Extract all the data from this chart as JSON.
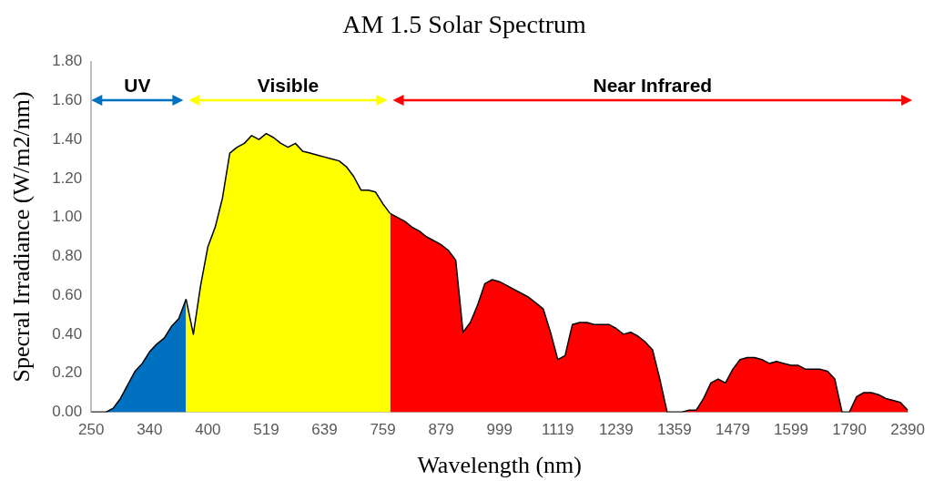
{
  "chart_data": {
    "type": "area",
    "title": "AM 1.5 Solar Spectrum",
    "xlabel": "Wavelength (nm)",
    "ylabel": "Specral Irradiance (W/m2/nm)",
    "categories": [
      "250",
      null,
      null,
      null,
      null,
      null,
      null,
      null,
      "340",
      null,
      null,
      null,
      null,
      null,
      null,
      null,
      "400",
      null,
      null,
      null,
      null,
      null,
      null,
      null,
      "519",
      null,
      null,
      null,
      null,
      null,
      null,
      null,
      "639",
      null,
      null,
      null,
      null,
      null,
      null,
      null,
      "759",
      null,
      null,
      null,
      null,
      null,
      null,
      null,
      "879",
      null,
      null,
      null,
      null,
      null,
      null,
      null,
      "999",
      null,
      null,
      null,
      null,
      null,
      null,
      null,
      "1119",
      null,
      null,
      null,
      null,
      null,
      null,
      null,
      "1239",
      null,
      null,
      null,
      null,
      null,
      null,
      null,
      "1359",
      null,
      null,
      null,
      null,
      null,
      null,
      null,
      "1479",
      null,
      null,
      null,
      null,
      null,
      null,
      null,
      "1599",
      null,
      null,
      null,
      null,
      null,
      null,
      null,
      "1790",
      null,
      null,
      null,
      null,
      null,
      null,
      null,
      "2390"
    ],
    "series": [
      {
        "color": "#0070c0",
        "values": [
          0,
          0,
          0,
          0.02,
          0.07,
          0.14,
          0.21,
          0.25,
          0.31,
          0.35,
          0.38,
          0.44,
          0.48,
          0.58,
          null,
          null,
          null,
          null,
          null,
          null,
          null,
          null,
          null,
          null,
          null,
          null,
          null,
          null,
          null,
          null,
          null,
          null,
          null,
          null,
          null,
          null,
          null,
          null,
          null,
          null,
          null,
          null,
          null,
          null,
          null,
          null,
          null,
          null,
          null,
          null,
          null,
          null,
          null,
          null,
          null,
          null,
          null,
          null,
          null,
          null,
          null,
          null,
          null,
          null,
          null,
          null,
          null,
          null,
          null,
          null,
          null,
          null,
          null,
          null,
          null,
          null,
          null,
          null,
          null,
          null,
          null,
          null,
          null,
          null,
          null,
          null,
          null,
          null,
          null,
          null,
          null,
          null,
          null,
          null,
          null,
          null,
          null,
          null,
          null,
          null,
          null,
          null,
          null,
          null,
          null,
          null,
          null,
          null,
          null,
          null,
          null,
          null,
          null
        ]
      },
      {
        "color": "#ffff00",
        "values": [
          null,
          null,
          null,
          null,
          null,
          null,
          null,
          null,
          null,
          null,
          null,
          null,
          null,
          0.58,
          0.4,
          0.65,
          0.85,
          0.95,
          1.1,
          1.33,
          1.36,
          1.38,
          1.42,
          1.4,
          1.43,
          1.41,
          1.38,
          1.36,
          1.38,
          1.34,
          1.33,
          1.32,
          1.31,
          1.3,
          1.29,
          1.26,
          1.21,
          1.14,
          1.14,
          1.13,
          1.07,
          1.02,
          null,
          null,
          null,
          null,
          null,
          null,
          null,
          null,
          null,
          null,
          null,
          null,
          null,
          null,
          null,
          null,
          null,
          null,
          null,
          null,
          null,
          null,
          null,
          null,
          null,
          null,
          null,
          null,
          null,
          null,
          null,
          null,
          null,
          null,
          null,
          null,
          null,
          null,
          null,
          null,
          null,
          null,
          null,
          null,
          null,
          null,
          null,
          null,
          null,
          null,
          null,
          null,
          null,
          null,
          null,
          null,
          null,
          null,
          null,
          null,
          null,
          null,
          null,
          null,
          null,
          null,
          null,
          null,
          null,
          null,
          null
        ]
      },
      {
        "color": "#ff0000",
        "values": [
          null,
          null,
          null,
          null,
          null,
          null,
          null,
          null,
          null,
          null,
          null,
          null,
          null,
          null,
          null,
          null,
          null,
          null,
          null,
          null,
          null,
          null,
          null,
          null,
          null,
          null,
          null,
          null,
          null,
          null,
          null,
          null,
          null,
          null,
          null,
          null,
          null,
          null,
          null,
          null,
          null,
          1.02,
          1.0,
          0.98,
          0.95,
          0.93,
          0.9,
          0.88,
          0.86,
          0.83,
          0.78,
          0.41,
          0.46,
          0.55,
          0.66,
          0.68,
          0.67,
          0.65,
          0.63,
          0.61,
          0.59,
          0.56,
          0.53,
          0.41,
          0.27,
          0.29,
          0.45,
          0.46,
          0.46,
          0.45,
          0.45,
          0.45,
          0.43,
          0.4,
          0.41,
          0.39,
          0.36,
          0.32,
          0.17,
          0,
          0,
          0,
          0.01,
          0.01,
          0.07,
          0.15,
          0.17,
          0.15,
          0.22,
          0.27,
          0.28,
          0.28,
          0.27,
          0.25,
          0.26,
          0.25,
          0.24,
          0.24,
          0.22,
          0.22,
          0.22,
          0.21,
          0.17,
          0,
          0,
          0.08,
          0.1,
          0.1,
          0.09,
          0.07,
          0.06,
          0.05,
          0.01
        ]
      }
    ],
    "ylim": [
      0,
      1.8
    ],
    "yticks": [
      {
        "value": 0,
        "label": "0.00"
      },
      {
        "value": 0.2,
        "label": "0.20"
      },
      {
        "value": 0.4,
        "label": "0.40"
      },
      {
        "value": 0.6,
        "label": "0.60"
      },
      {
        "value": 0.8,
        "label": "0.80"
      },
      {
        "value": 1.0,
        "label": "1.00"
      },
      {
        "value": 1.2,
        "label": "1.20"
      },
      {
        "value": 1.4,
        "label": "1.40"
      },
      {
        "value": 1.6,
        "label": "1.60"
      },
      {
        "value": 1.8,
        "label": "1.80"
      }
    ],
    "annotations": [
      "UV",
      "Visible",
      "Near Infrared"
    ]
  }
}
